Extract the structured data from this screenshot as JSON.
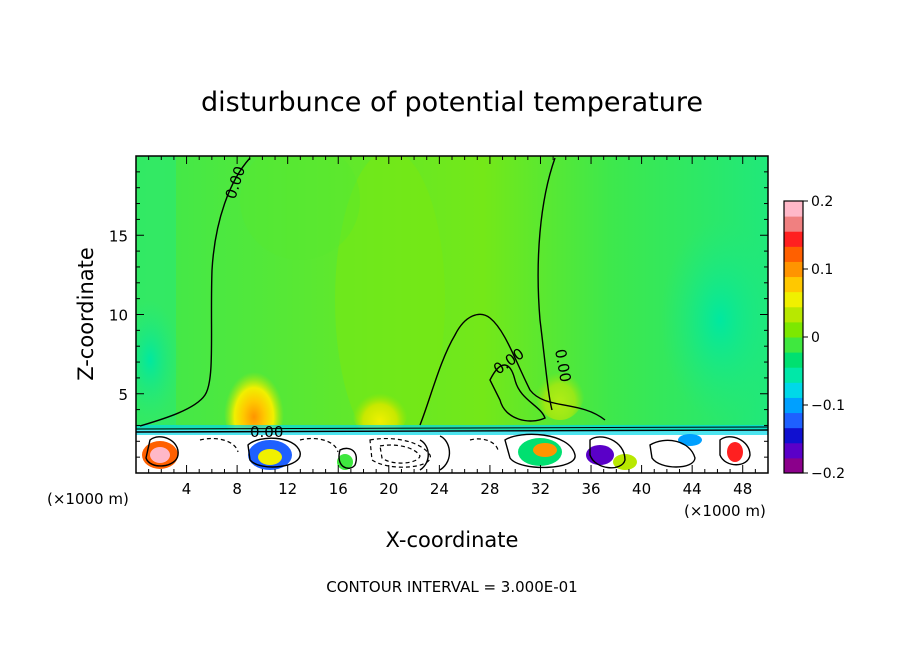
{
  "chart_data": {
    "type": "heatmap",
    "title": "disturbunce of potential temperature",
    "xlabel": "X-coordinate",
    "ylabel": "Z-coordinate",
    "x_unit_left": "(×1000 m)",
    "x_unit_right": "(×1000 m)",
    "xlim": [
      0,
      50
    ],
    "ylim": [
      0,
      20
    ],
    "xticks": [
      4,
      8,
      12,
      16,
      20,
      24,
      28,
      32,
      36,
      40,
      44,
      48
    ],
    "xtick_labels": [
      "4",
      "8",
      "12",
      "16",
      "20",
      "24",
      "28",
      "32",
      "36",
      "40",
      "44",
      "48"
    ],
    "yticks": [
      5,
      10,
      15
    ],
    "ytick_labels": [
      "5",
      "10",
      "15"
    ],
    "colorbar": {
      "min": -0.2,
      "max": 0.2,
      "ticks": [
        0.2,
        0.1,
        0,
        -0.1,
        -0.2
      ],
      "tick_labels": [
        "0.2",
        "0.1",
        "0",
        "−0.1",
        "−0.2"
      ],
      "colors": [
        "#8b008b",
        "#5a00c8",
        "#1010d0",
        "#1e60ff",
        "#00a0ff",
        "#00d8e8",
        "#00e8a8",
        "#00e070",
        "#3fe83f",
        "#7ce800",
        "#b8e800",
        "#f0f000",
        "#ffc800",
        "#ff9400",
        "#ff6000",
        "#ff2020",
        "#f08080",
        "#ffb8c8"
      ]
    },
    "contour_interval_text": "CONTOUR INTERVAL = 3.000E-01",
    "contour_labels": [
      "0.00",
      "0.00",
      "0.00",
      "0.00"
    ]
  }
}
